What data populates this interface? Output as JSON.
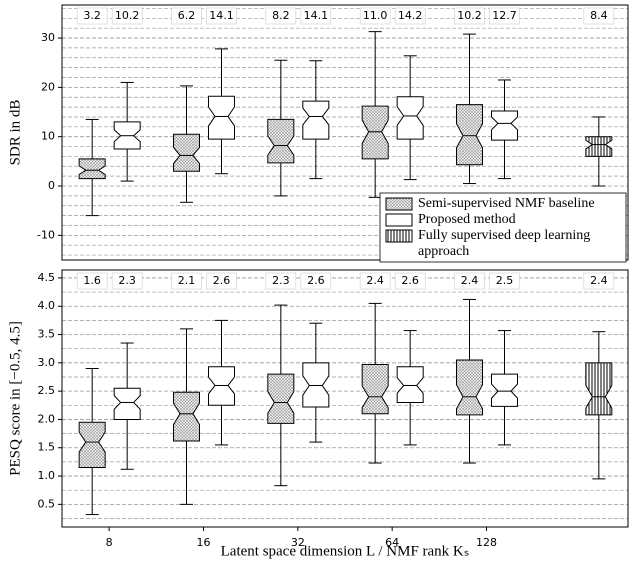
{
  "chart_data": [
    {
      "type": "box",
      "ylabel": "SDR in dB",
      "ylim": [
        -15,
        36.7
      ],
      "yticks": [
        -10,
        0,
        10,
        20,
        30
      ],
      "minor_yticks": [
        -14,
        -12,
        -8,
        -6,
        -4,
        -2,
        2,
        4,
        6,
        8,
        12,
        14,
        16,
        18,
        22,
        24,
        26,
        28,
        32,
        34,
        36
      ],
      "grid": true,
      "legend": "lower right",
      "series": [
        {
          "name": "Semi-supervised NMF baseline",
          "pattern": "dots",
          "notch": true,
          "boxes": [
            {
              "whislo": -6,
              "q1": 1.5,
              "med": 3.2,
              "q3": 5.5,
              "whishi": 13.5
            },
            {
              "whislo": -3.3,
              "q1": 3,
              "med": 6.2,
              "q3": 10.5,
              "whishi": 20.3
            },
            {
              "whislo": -2,
              "q1": 4.7,
              "med": 8.2,
              "q3": 13.5,
              "whishi": 25.5
            },
            {
              "whislo": -2.3,
              "q1": 5.5,
              "med": 11.0,
              "q3": 16.2,
              "whishi": 31.3
            },
            {
              "whislo": 0.5,
              "q1": 4.3,
              "med": 10.2,
              "q3": 16.5,
              "whishi": 30.8
            },
            null
          ],
          "value_labels": [
            "3.2",
            "6.2",
            "8.2",
            "11.0",
            "10.2",
            null
          ]
        },
        {
          "name": "Proposed method",
          "pattern": "none",
          "notch": true,
          "boxes": [
            {
              "whislo": 1,
              "q1": 7.5,
              "med": 10.2,
              "q3": 13,
              "whishi": 21
            },
            {
              "whislo": 2.5,
              "q1": 9.5,
              "med": 14.1,
              "q3": 18.2,
              "whishi": 27.8
            },
            {
              "whislo": 1.5,
              "q1": 9.5,
              "med": 14.1,
              "q3": 17.2,
              "whishi": 25.4
            },
            {
              "whislo": 1.3,
              "q1": 9.5,
              "med": 14.2,
              "q3": 18.1,
              "whishi": 26.4
            },
            {
              "whislo": 1.5,
              "q1": 9.3,
              "med": 12.7,
              "q3": 15.2,
              "whishi": 21.5
            },
            null
          ],
          "value_labels": [
            "10.2",
            "14.1",
            "14.1",
            "14.2",
            "12.7",
            null
          ]
        },
        {
          "name": "Fully supervised deep learning approach",
          "pattern": "vlines",
          "notch": true,
          "boxes": [
            null,
            null,
            null,
            null,
            null,
            {
              "whislo": 0,
              "q1": 6,
              "med": 8.4,
              "q3": 10,
              "whishi": 14
            }
          ],
          "value_labels": [
            null,
            null,
            null,
            null,
            null,
            "8.4"
          ]
        }
      ]
    },
    {
      "type": "box",
      "ylabel": "PESQ score in [−0.5, 4.5]",
      "xlabel": "Latent space dimension L / NMF rank Kₛ",
      "categories": [
        "8",
        "16",
        "32",
        "64",
        "128",
        null
      ],
      "ylim": [
        0.1,
        4.64
      ],
      "yticks": [
        0.5,
        {
          "value": 1,
          "label": "1.0"
        },
        1.5,
        {
          "value": 2,
          "label": "2.0"
        },
        2.5,
        {
          "value": 3,
          "label": "3.0"
        },
        3.5,
        {
          "value": 4,
          "label": "4.0"
        },
        4.5
      ],
      "minor_yticks": [
        0.25,
        0.75,
        1.25,
        1.75,
        2.25,
        2.75,
        3.25,
        3.75,
        4.25
      ],
      "grid": true,
      "series": [
        {
          "pattern": "dots",
          "notch": true,
          "boxes": [
            {
              "whislo": 0.32,
              "q1": 1.15,
              "med": 1.6,
              "q3": 1.95,
              "whishi": 2.9
            },
            {
              "whislo": 0.5,
              "q1": 1.62,
              "med": 2.1,
              "q3": 2.48,
              "whishi": 3.6
            },
            {
              "whislo": 0.83,
              "q1": 1.93,
              "med": 2.3,
              "q3": 2.8,
              "whishi": 4.02
            },
            {
              "whislo": 1.23,
              "q1": 2.1,
              "med": 2.4,
              "q3": 2.97,
              "whishi": 4.05
            },
            {
              "whislo": 1.23,
              "q1": 2.08,
              "med": 2.4,
              "q3": 3.05,
              "whishi": 4.12
            },
            null
          ],
          "value_labels": [
            "1.6",
            "2.1",
            "2.3",
            "2.4",
            "2.4",
            null
          ]
        },
        {
          "pattern": "none",
          "notch": true,
          "boxes": [
            {
              "whislo": 1.12,
              "q1": 2.0,
              "med": 2.3,
              "q3": 2.55,
              "whishi": 3.35
            },
            {
              "whislo": 1.55,
              "q1": 2.25,
              "med": 2.6,
              "q3": 2.93,
              "whishi": 3.75
            },
            {
              "whislo": 1.6,
              "q1": 2.22,
              "med": 2.6,
              "q3": 3.0,
              "whishi": 3.7
            },
            {
              "whislo": 1.55,
              "q1": 2.3,
              "med": 2.6,
              "q3": 2.93,
              "whishi": 3.57
            },
            {
              "whislo": 1.55,
              "q1": 2.23,
              "med": 2.5,
              "q3": 2.8,
              "whishi": 3.57
            },
            null
          ],
          "value_labels": [
            "2.3",
            "2.6",
            "2.6",
            "2.6",
            "2.5",
            null
          ]
        },
        {
          "pattern": "vlines",
          "notch": true,
          "boxes": [
            null,
            null,
            null,
            null,
            null,
            {
              "whislo": 0.95,
              "q1": 2.08,
              "med": 2.4,
              "q3": 3.0,
              "whishi": 3.55
            }
          ],
          "value_labels": [
            null,
            null,
            null,
            null,
            null,
            "2.4"
          ]
        }
      ]
    }
  ]
}
